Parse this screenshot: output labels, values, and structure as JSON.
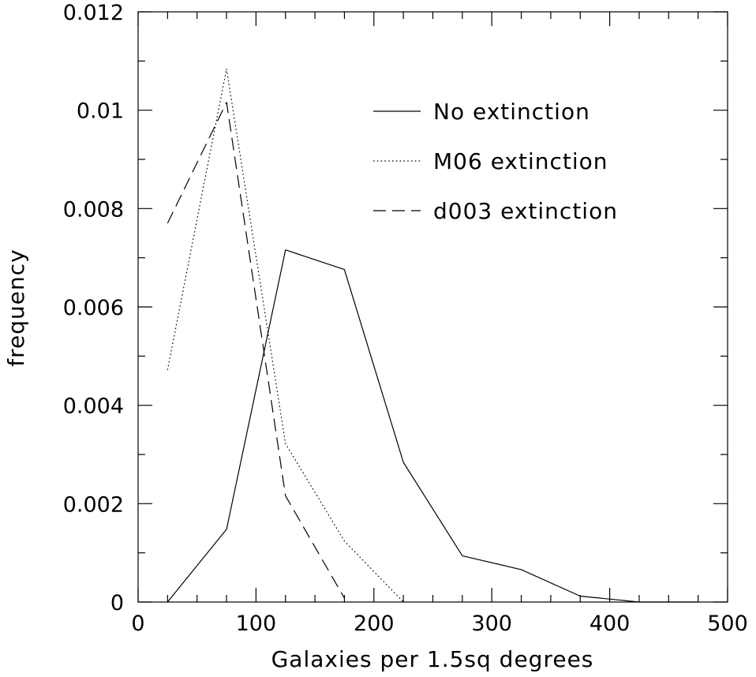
{
  "chart_data": {
    "type": "line",
    "title": "",
    "xlabel": "Galaxies per 1.5sq degrees",
    "ylabel": "frequency",
    "xlim": [
      0,
      500
    ],
    "ylim": [
      0,
      0.012
    ],
    "xticks": [
      0,
      100,
      200,
      300,
      400,
      500
    ],
    "xtick_labels": [
      "0",
      "100",
      "200",
      "300",
      "400",
      "500"
    ],
    "yticks": [
      0,
      0.002,
      0.004,
      0.006,
      0.008,
      0.01,
      0.012
    ],
    "ytick_labels": [
      "0",
      "0.002",
      "0.004",
      "0.006",
      "0.008",
      "0.01",
      "0.012"
    ],
    "grid": false,
    "legend_position": "top-right",
    "series": [
      {
        "name": "No extinction",
        "style": "solid",
        "x": [
          25,
          75,
          125,
          175,
          225,
          275,
          325,
          375,
          425,
          475
        ],
        "y": [
          0.0,
          0.00148,
          0.00716,
          0.00676,
          0.00284,
          0.00094,
          0.00066,
          0.00012,
          0.0,
          0.0
        ]
      },
      {
        "name": "M06 extinction",
        "style": "dotted",
        "x": [
          25,
          75,
          125,
          175,
          225
        ],
        "y": [
          0.00472,
          0.01084,
          0.00322,
          0.00124,
          0.0
        ]
      },
      {
        "name": "d003 extinction",
        "style": "dashed",
        "x": [
          25,
          75,
          125,
          175
        ],
        "y": [
          0.0077,
          0.01016,
          0.00216,
          8e-05
        ]
      }
    ]
  }
}
